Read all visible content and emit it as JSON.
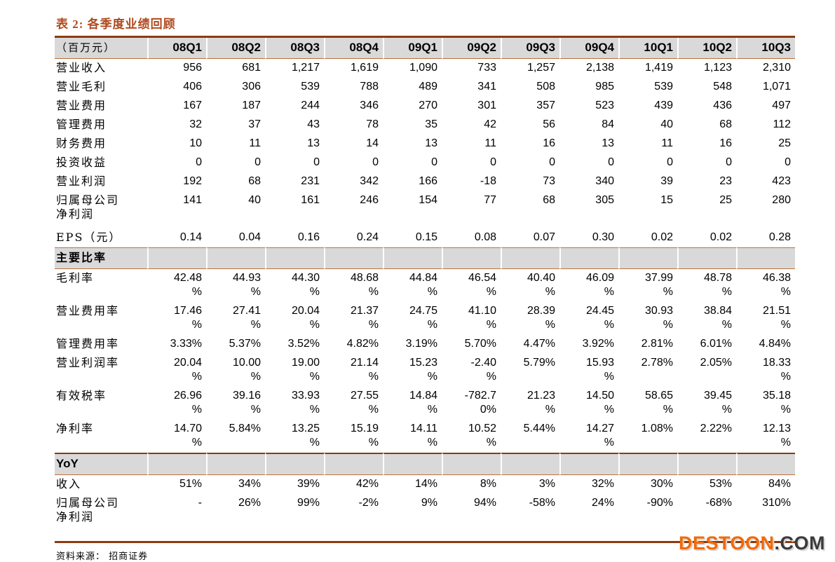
{
  "title": "表 2:  各季度业绩回顾",
  "source_note": "资料来源：  招商证券",
  "logo": {
    "part1": "DESTOON",
    "part2": ".COM"
  },
  "colors": {
    "accent_title": "#b04a1e",
    "border_dark": "#8c3a0f",
    "border_light": "#c0703c",
    "header_bg": "#d9d9d9",
    "logo_orange": "#f26a07",
    "logo_dark": "#3b3b3b"
  },
  "table": {
    "unit_label": "（百万元）",
    "quarters": [
      "08Q1",
      "08Q2",
      "08Q3",
      "08Q4",
      "09Q1",
      "09Q2",
      "09Q3",
      "09Q4",
      "10Q1",
      "10Q2",
      "10Q3"
    ],
    "rows": [
      {
        "type": "data",
        "label": "营业收入",
        "values": [
          "956",
          "681",
          "1,217",
          "1,619",
          "1,090",
          "733",
          "1,257",
          "2,138",
          "1,419",
          "1,123",
          "2,310"
        ]
      },
      {
        "type": "data",
        "label": "营业毛利",
        "values": [
          "406",
          "306",
          "539",
          "788",
          "489",
          "341",
          "508",
          "985",
          "539",
          "548",
          "1,071"
        ]
      },
      {
        "type": "data",
        "label": "营业费用",
        "values": [
          "167",
          "187",
          "244",
          "346",
          "270",
          "301",
          "357",
          "523",
          "439",
          "436",
          "497"
        ]
      },
      {
        "type": "data",
        "label": "管理费用",
        "values": [
          "32",
          "37",
          "43",
          "78",
          "35",
          "42",
          "56",
          "84",
          "40",
          "68",
          "112"
        ]
      },
      {
        "type": "data",
        "label": "财务费用",
        "values": [
          "10",
          "11",
          "13",
          "14",
          "13",
          "11",
          "16",
          "13",
          "11",
          "16",
          "25"
        ]
      },
      {
        "type": "data",
        "label": "投资收益",
        "values": [
          "0",
          "0",
          "0",
          "0",
          "0",
          "0",
          "0",
          "0",
          "0",
          "0",
          "0"
        ]
      },
      {
        "type": "data",
        "label": "营业利润",
        "values": [
          "192",
          "68",
          "231",
          "342",
          "166",
          "-18",
          "73",
          "340",
          "39",
          "23",
          "423"
        ]
      },
      {
        "type": "data",
        "label": "归属母公司\n净利润",
        "values": [
          "141",
          "40",
          "161",
          "246",
          "154",
          "77",
          "68",
          "305",
          "15",
          "25",
          "280"
        ]
      },
      {
        "type": "data",
        "key": "eps",
        "label": "EPS（元）",
        "values": [
          "0.14",
          "0.04",
          "0.16",
          "0.24",
          "0.15",
          "0.08",
          "0.07",
          "0.30",
          "0.02",
          "0.02",
          "0.28"
        ]
      },
      {
        "type": "section",
        "key": "ratios",
        "label": "主要比率"
      },
      {
        "type": "data",
        "label": "毛利率",
        "values": [
          "42.48\n%",
          "44.93\n%",
          "44.30\n%",
          "48.68\n%",
          "44.84\n%",
          "46.54\n%",
          "40.40\n%",
          "46.09\n%",
          "37.99\n%",
          "48.78\n%",
          "46.38\n%"
        ]
      },
      {
        "type": "data",
        "label": "营业费用率",
        "values": [
          "17.46\n%",
          "27.41\n%",
          "20.04\n%",
          "21.37\n%",
          "24.75\n%",
          "41.10\n%",
          "28.39\n%",
          "24.45\n%",
          "30.93\n%",
          "38.84\n%",
          "21.51\n%"
        ]
      },
      {
        "type": "data",
        "label": "管理费用率",
        "values": [
          "3.33%",
          "5.37%",
          "3.52%",
          "4.82%",
          "3.19%",
          "5.70%",
          "4.47%",
          "3.92%",
          "2.81%",
          "6.01%",
          "4.84%"
        ]
      },
      {
        "type": "data",
        "label": "营业利润率",
        "values": [
          "20.04\n%",
          "10.00\n%",
          "19.00\n%",
          "21.14\n%",
          "15.23\n%",
          "-2.40\n%",
          "5.79%",
          "15.93\n%",
          "2.78%",
          "2.05%",
          "18.33\n%"
        ]
      },
      {
        "type": "data",
        "label": "有效税率",
        "values": [
          "26.96\n%",
          "39.16\n%",
          "33.93\n%",
          "27.55\n%",
          "14.84\n%",
          "-782.7\n0%",
          "21.23\n%",
          "14.50\n%",
          "58.65\n%",
          "39.45\n%",
          "35.18\n%"
        ]
      },
      {
        "type": "data",
        "label": "净利率",
        "values": [
          "14.70\n%",
          "5.84%",
          "13.25\n%",
          "15.19\n%",
          "14.11\n%",
          "10.52\n%",
          "5.44%",
          "14.27\n%",
          "1.08%",
          "2.22%",
          "12.13\n%"
        ]
      },
      {
        "type": "section",
        "key": "yoy",
        "label": "YoY"
      },
      {
        "type": "data",
        "label": "收入",
        "values": [
          "51%",
          "34%",
          "39%",
          "42%",
          "14%",
          "8%",
          "3%",
          "32%",
          "30%",
          "53%",
          "84%"
        ]
      },
      {
        "type": "data",
        "key": "last",
        "label": "归属母公司\n净利润",
        "values": [
          "-",
          "26%",
          "99%",
          "-2%",
          "9%",
          "94%",
          "-58%",
          "24%",
          "-90%",
          "-68%",
          "310%"
        ]
      }
    ]
  }
}
